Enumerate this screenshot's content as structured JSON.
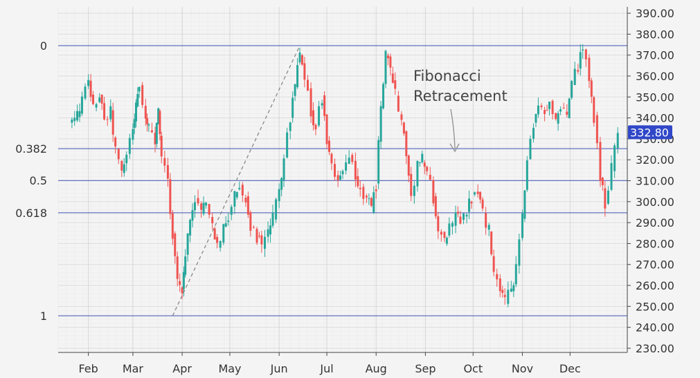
{
  "chart_data": {
    "type": "candlestick",
    "title": "",
    "xlabel": "",
    "ylabel": "",
    "ylim": [
      228,
      393
    ],
    "y_ticks": [
      "230.00",
      "240.00",
      "250.00",
      "260.00",
      "270.00",
      "280.00",
      "290.00",
      "300.00",
      "310.00",
      "320.00",
      "330.00",
      "340.00",
      "350.00",
      "360.00",
      "370.00",
      "380.00",
      "390.00"
    ],
    "x_ticks": [
      "Feb",
      "Mar",
      "Apr",
      "May",
      "Jun",
      "Jul",
      "Aug",
      "Sep",
      "Oct",
      "Nov",
      "Dec"
    ],
    "grid": true,
    "current_price_label": "332.80",
    "current_price": 332.8,
    "colors": {
      "up": "#26a69a",
      "down": "#ef5350",
      "fib_line": "#3f51b5",
      "badge": "#3047c8",
      "dash": "#888888"
    },
    "fibonacci_levels": [
      {
        "label": "0",
        "value": 374.5
      },
      {
        "label": "0.382",
        "value": 325.3
      },
      {
        "label": "0.5",
        "value": 310.1
      },
      {
        "label": "0.618",
        "value": 294.7
      },
      {
        "label": "1",
        "value": 245.5
      }
    ],
    "swing": {
      "from_date": "2021-03-26",
      "from_value": 245.5,
      "to_date": "2021-06-14",
      "to_value": 374.5
    },
    "annotation": {
      "lines": [
        "Fibonacci",
        "Retracement"
      ]
    },
    "closes": [
      [
        "2021-01-20",
        337
      ],
      [
        "2021-01-25",
        341
      ],
      [
        "2021-01-28",
        349
      ],
      [
        "2021-02-01",
        357
      ],
      [
        "2021-02-04",
        344
      ],
      [
        "2021-02-08",
        352
      ],
      [
        "2021-02-11",
        338
      ],
      [
        "2021-02-15",
        343
      ],
      [
        "2021-02-18",
        325
      ],
      [
        "2021-02-22",
        313
      ],
      [
        "2021-02-25",
        322
      ],
      [
        "2021-03-01",
        336
      ],
      [
        "2021-03-03",
        346
      ],
      [
        "2021-03-05",
        356
      ],
      [
        "2021-03-09",
        341
      ],
      [
        "2021-03-11",
        335
      ],
      [
        "2021-03-15",
        328
      ],
      [
        "2021-03-17",
        342
      ],
      [
        "2021-03-19",
        322
      ],
      [
        "2021-03-23",
        310
      ],
      [
        "2021-03-26",
        284
      ],
      [
        "2021-03-29",
        262
      ],
      [
        "2021-04-01",
        258
      ],
      [
        "2021-04-03",
        276
      ],
      [
        "2021-04-06",
        291
      ],
      [
        "2021-04-09",
        302
      ],
      [
        "2021-04-13",
        295
      ],
      [
        "2021-04-16",
        300
      ],
      [
        "2021-04-20",
        288
      ],
      [
        "2021-04-23",
        279
      ],
      [
        "2021-04-27",
        287
      ],
      [
        "2021-04-30",
        293
      ],
      [
        "2021-05-04",
        303
      ],
      [
        "2021-05-07",
        308
      ],
      [
        "2021-05-11",
        302
      ],
      [
        "2021-05-14",
        288
      ],
      [
        "2021-05-18",
        283
      ],
      [
        "2021-05-21",
        278
      ],
      [
        "2021-05-25",
        285
      ],
      [
        "2021-05-28",
        292
      ],
      [
        "2021-06-01",
        306
      ],
      [
        "2021-06-04",
        322
      ],
      [
        "2021-06-08",
        340
      ],
      [
        "2021-06-11",
        356
      ],
      [
        "2021-06-14",
        369
      ],
      [
        "2021-06-17",
        357
      ],
      [
        "2021-06-21",
        343
      ],
      [
        "2021-06-24",
        336
      ],
      [
        "2021-06-28",
        350
      ],
      [
        "2021-07-01",
        330
      ],
      [
        "2021-07-04",
        318
      ],
      [
        "2021-07-08",
        309
      ],
      [
        "2021-07-11",
        314
      ],
      [
        "2021-07-15",
        321
      ],
      [
        "2021-07-19",
        311
      ],
      [
        "2021-07-22",
        306
      ],
      [
        "2021-07-26",
        302
      ],
      [
        "2021-07-29",
        296
      ],
      [
        "2021-08-01",
        308
      ],
      [
        "2021-08-04",
        346
      ],
      [
        "2021-08-07",
        371
      ],
      [
        "2021-08-10",
        362
      ],
      [
        "2021-08-13",
        352
      ],
      [
        "2021-08-17",
        339
      ],
      [
        "2021-08-20",
        322
      ],
      [
        "2021-08-23",
        302
      ],
      [
        "2021-08-27",
        318
      ],
      [
        "2021-08-30",
        320
      ],
      [
        "2021-09-02",
        313
      ],
      [
        "2021-09-06",
        302
      ],
      [
        "2021-09-09",
        286
      ],
      [
        "2021-09-13",
        281
      ],
      [
        "2021-09-16",
        289
      ],
      [
        "2021-09-20",
        295
      ],
      [
        "2021-09-23",
        290
      ],
      [
        "2021-09-27",
        296
      ],
      [
        "2021-09-30",
        302
      ],
      [
        "2021-10-04",
        305
      ],
      [
        "2021-10-07",
        295
      ],
      [
        "2021-10-11",
        286
      ],
      [
        "2021-10-14",
        265
      ],
      [
        "2021-10-18",
        258
      ],
      [
        "2021-10-21",
        252
      ],
      [
        "2021-10-25",
        258
      ],
      [
        "2021-10-28",
        268
      ],
      [
        "2021-11-01",
        293
      ],
      [
        "2021-11-04",
        320
      ],
      [
        "2021-11-08",
        338
      ],
      [
        "2021-11-11",
        346
      ],
      [
        "2021-11-15",
        343
      ],
      [
        "2021-11-18",
        349
      ],
      [
        "2021-11-22",
        337
      ],
      [
        "2021-11-25",
        345
      ],
      [
        "2021-11-29",
        341
      ],
      [
        "2021-12-02",
        357
      ],
      [
        "2021-12-06",
        364
      ],
      [
        "2021-12-09",
        373
      ],
      [
        "2021-12-13",
        358
      ],
      [
        "2021-12-16",
        340
      ],
      [
        "2021-12-20",
        312
      ],
      [
        "2021-12-23",
        298
      ],
      [
        "2021-12-27",
        316
      ],
      [
        "2021-12-31",
        332.8
      ]
    ]
  }
}
